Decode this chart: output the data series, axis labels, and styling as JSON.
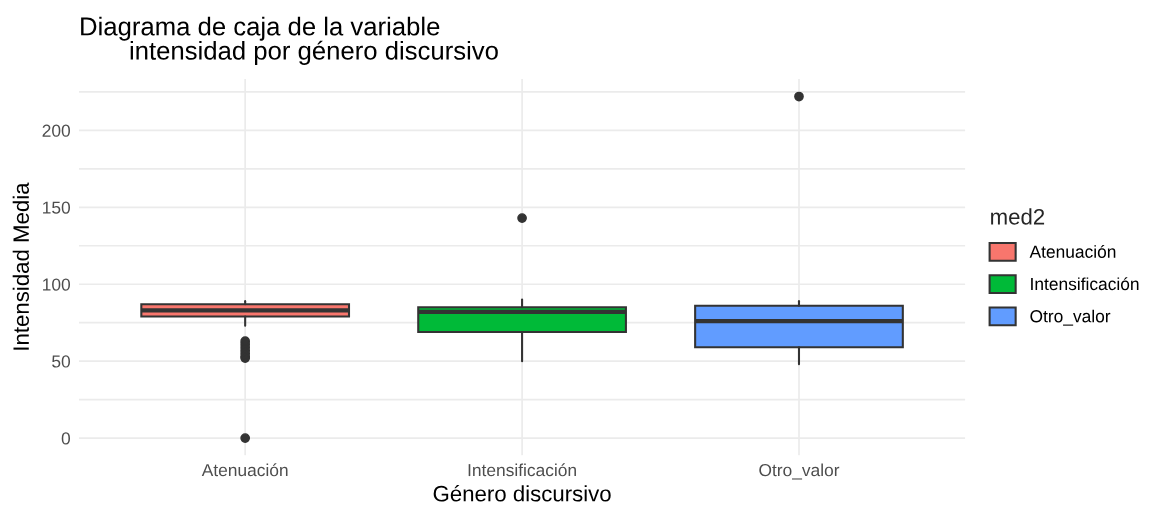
{
  "chart_data": {
    "type": "box",
    "title": "Diagrama de caja de la variable\n       intensidad por género discursivo",
    "xlabel": "Género discursivo",
    "ylabel": "Intensidad Media",
    "legend_title": "med2",
    "categories": [
      "Atenuación",
      "Intensificación",
      "Otro_valor"
    ],
    "series": [
      {
        "name": "Atenuación",
        "color": "#f8766d",
        "boxes": [
          {
            "low": 73,
            "q1": 79,
            "median": 83,
            "q3": 87,
            "high": 89,
            "outliers": [
              0,
              52,
              53,
              55,
              57,
              59,
              61,
              63
            ]
          },
          null,
          null
        ]
      },
      {
        "name": "Intensificación",
        "color": "#00ba38",
        "boxes": [
          null,
          {
            "low": 50,
            "q1": 69,
            "median": 82,
            "q3": 85,
            "high": 90,
            "outliers": [
              143
            ]
          },
          null
        ]
      },
      {
        "name": "Otro_valor",
        "color": "#619cff",
        "boxes": [
          null,
          null,
          {
            "low": 48,
            "q1": 59,
            "median": 76,
            "q3": 86,
            "high": 89,
            "outliers": [
              222
            ]
          }
        ]
      }
    ],
    "ylim": [
      -11.1,
      233.4
    ],
    "yticks": [
      0,
      {
        "value": 25,
        "label": null
      },
      50,
      {
        "value": 75,
        "label": null
      },
      100,
      {
        "value": 125,
        "label": null
      },
      150,
      {
        "value": 175,
        "label": null
      },
      200,
      {
        "value": 225,
        "label": null
      }
    ],
    "grid": true,
    "legend": "right"
  }
}
